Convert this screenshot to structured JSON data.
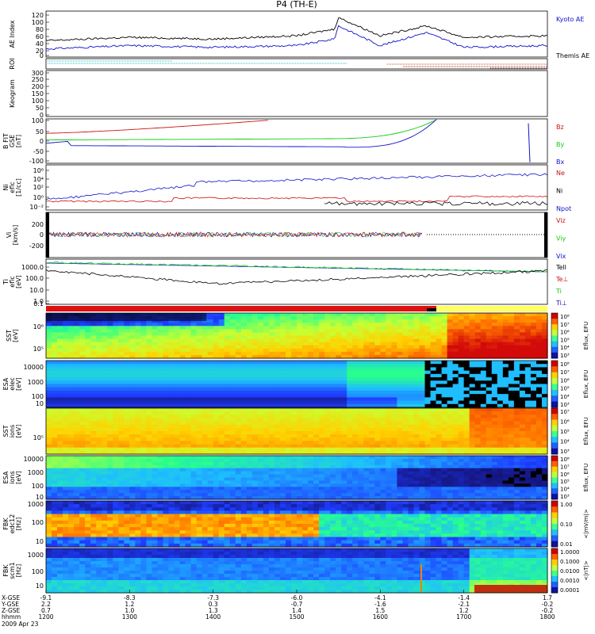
{
  "title": "P4 (TH-E)",
  "colors": {
    "blue": "#1010cc",
    "red": "#cc1010",
    "green": "#10cc10",
    "cyan": "#20c0c0",
    "black": "#000000",
    "orange": "#c05010",
    "yellow": "#ffff00"
  },
  "panels": [
    {
      "id": "ae",
      "ylabel": "AE Index",
      "ticks": [
        "120",
        "100",
        "80",
        "60",
        "40",
        "20",
        "0"
      ],
      "legend": [
        {
          "text": "Kyoto AE",
          "color": "blue"
        },
        {
          "text": "Themis AE",
          "color": "black"
        }
      ]
    },
    {
      "id": "roi",
      "ylabel": "ROI",
      "ticks": [],
      "legend": []
    },
    {
      "id": "keogram",
      "ylabel": "Keogram",
      "ticks": [
        "300",
        "250",
        "200",
        "150",
        "100",
        "50",
        "0"
      ],
      "legend": []
    },
    {
      "id": "bfit",
      "ylabel": "B FIT\nGSE\n[nT]",
      "ticks": [
        "100",
        "50",
        "0",
        "-50",
        "-100"
      ],
      "legend": [
        {
          "text": "Bz",
          "color": "red"
        },
        {
          "text": "By",
          "color": "green"
        },
        {
          "text": "Bx",
          "color": "blue"
        }
      ]
    },
    {
      "id": "ni",
      "ylabel": "Ni\neflc\n[1/cc]",
      "ticks": [
        "10⁶",
        "10⁴",
        "10²",
        "10⁰",
        "10⁻²"
      ],
      "legend": [
        {
          "text": "Ne",
          "color": "red"
        },
        {
          "text": "Ni",
          "color": "black"
        },
        {
          "text": "Npot",
          "color": "blue"
        }
      ]
    },
    {
      "id": "vi",
      "ylabel": "Vi\n[km/s]",
      "ticks": [
        "200",
        "0",
        "-200"
      ],
      "legend": [
        {
          "text": "Viz",
          "color": "red"
        },
        {
          "text": "Viy",
          "color": "green"
        },
        {
          "text": "Vix",
          "color": "blue"
        }
      ]
    },
    {
      "id": "ti",
      "ylabel": "Ti\neflc\n[eV]",
      "ticks": [
        "1000.0",
        "100.0",
        "10.0",
        "1.0",
        "0.1"
      ],
      "legend": [
        {
          "text": "Tell",
          "color": "black"
        },
        {
          "text": "Te⊥",
          "color": "red"
        },
        {
          "text": "Ti",
          "color": "green"
        },
        {
          "text": "Ti⊥",
          "color": "blue"
        }
      ]
    },
    {
      "id": "sst_e",
      "ylabel": "SST\n[eV]",
      "ticks": [
        "10⁶",
        "10⁵"
      ],
      "cbar": [
        "10⁸",
        "10⁷",
        "10⁶",
        "10⁵",
        "10⁴",
        "10³"
      ],
      "cbar_label": "Eflux, EFU"
    },
    {
      "id": "esa_e",
      "ylabel": "ESA\nelec\n[eV]",
      "ticks": [
        "10000",
        "1000",
        "100",
        "10"
      ],
      "cbar": [
        "10⁸",
        "10⁷",
        "10⁶",
        "10⁵",
        "10⁴",
        "10³"
      ],
      "cbar_label": "Eflux, EFU"
    },
    {
      "id": "sst_i",
      "ylabel": "SST\nions\n[eV]",
      "ticks": [
        "10⁵"
      ],
      "cbar": [
        "10⁷",
        "10⁶",
        "10⁵",
        "10⁴",
        "10³"
      ],
      "cbar_label": "Eflux, EFU"
    },
    {
      "id": "esa_i",
      "ylabel": "ESA\nions\n[eV]",
      "ticks": [
        "10000",
        "1000",
        "100",
        "10"
      ],
      "cbar": [
        "10⁸",
        "10⁷",
        "10⁶",
        "10⁵",
        "10⁴",
        "10³"
      ],
      "cbar_label": "Eflux, EFU"
    },
    {
      "id": "fbk_e",
      "ylabel": "FBK\nedc12\n[Hz]",
      "ticks": [
        "1000",
        "100",
        "10"
      ],
      "cbar": [
        "1.00",
        "0.10",
        "0.01"
      ],
      "cbar_label": "<|mV/m|>"
    },
    {
      "id": "fbk_s",
      "ylabel": "FBK\nscm1\n[Hz]",
      "ticks": [
        "1000",
        "100",
        "10"
      ],
      "cbar": [
        "1.0000",
        "0.1000",
        "0.0100",
        "0.0010",
        "0.0001"
      ],
      "cbar_label": "<|nT|>"
    }
  ],
  "axis": {
    "row_labels": [
      "X-GSE",
      "Y-GSE",
      "Z-GSE",
      "hhmm",
      "2009 Apr 23"
    ],
    "columns": [
      {
        "x": "-9.1",
        "y": "2.2",
        "z": "0.7",
        "t": "1200"
      },
      {
        "x": "-8.3",
        "y": "1.2",
        "z": "1.0",
        "t": "1300"
      },
      {
        "x": "-7.3",
        "y": "0.3",
        "z": "1.3",
        "t": "1400"
      },
      {
        "x": "-6.0",
        "y": "-0.7",
        "z": "1.4",
        "t": "1500"
      },
      {
        "x": "-4.1",
        "y": "-1.6",
        "z": "1.5",
        "t": "1600"
      },
      {
        "x": "-1.4",
        "y": "-2.1",
        "z": "1.2",
        "t": "1700"
      },
      {
        "x": "1.7",
        "y": "-0.2",
        "z": "-0.2",
        "t": "1800"
      }
    ]
  },
  "chart_data": {
    "type": "line",
    "title": "P4 (TH-E)",
    "xlabel": "hhmm",
    "x_range": [
      "1200",
      "1800"
    ],
    "series": [
      {
        "name": "Kyoto AE",
        "x": [
          1200,
          1300,
          1400,
          1500,
          1545,
          1550,
          1600,
          1655,
          1700,
          1800
        ],
        "values": [
          20,
          30,
          25,
          30,
          50,
          90,
          30,
          70,
          25,
          30
        ]
      },
      {
        "name": "Themis AE",
        "x": [
          1200,
          1300,
          1400,
          1500,
          1545,
          1550,
          1600,
          1655,
          1700,
          1800
        ],
        "values": [
          45,
          55,
          50,
          60,
          80,
          115,
          60,
          90,
          55,
          60
        ]
      }
    ]
  }
}
